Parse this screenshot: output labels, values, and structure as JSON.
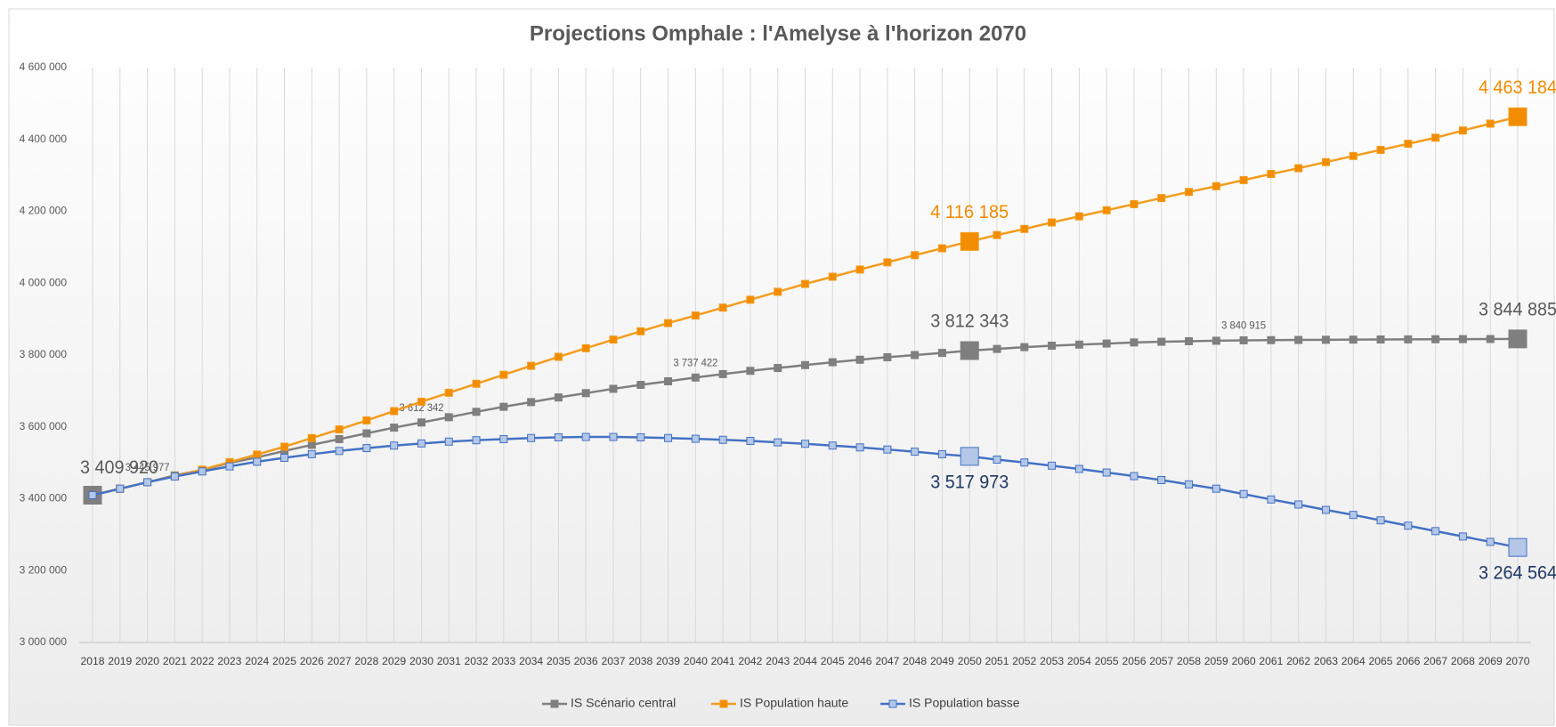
{
  "chart_data": {
    "type": "line",
    "title": "Projections Omphale : l'Amelyse à l'horizon 2070",
    "categories": [
      "2018",
      "2019",
      "2020",
      "2021",
      "2022",
      "2023",
      "2024",
      "2025",
      "2026",
      "2027",
      "2028",
      "2029",
      "2030",
      "2031",
      "2032",
      "2033",
      "2034",
      "2035",
      "2036",
      "2037",
      "2038",
      "2039",
      "2040",
      "2041",
      "2042",
      "2043",
      "2044",
      "2045",
      "2046",
      "2047",
      "2048",
      "2049",
      "2050",
      "2051",
      "2052",
      "2053",
      "2054",
      "2055",
      "2056",
      "2057",
      "2058",
      "2059",
      "2060",
      "2061",
      "2062",
      "2063",
      "2064",
      "2065",
      "2066",
      "2067",
      "2068",
      "2069",
      "2070"
    ],
    "ylim": [
      3000000,
      4600000
    ],
    "yticks": [
      {
        "value": 3000000,
        "label": "3 000 000"
      },
      {
        "value": 3200000,
        "label": "3 200 000"
      },
      {
        "value": 3400000,
        "label": "3 400 000"
      },
      {
        "value": 3600000,
        "label": "3 600 000"
      },
      {
        "value": 3800000,
        "label": "3 800 000"
      },
      {
        "value": 4000000,
        "label": "4 000 000"
      },
      {
        "value": 4200000,
        "label": "4 200 000"
      },
      {
        "value": 4400000,
        "label": "4 400 000"
      },
      {
        "value": 4600000,
        "label": "4 600 000"
      }
    ],
    "grid": true,
    "legend": "bottom",
    "series": [
      {
        "name": "IS Scénario central",
        "color": "#7f7f7f",
        "marker_color": "#7f7f7f",
        "label_color": "#595959",
        "values": [
          3409920,
          3428000,
          3445977,
          3465000,
          3480000,
          3500000,
          3515000,
          3533000,
          3550000,
          3566000,
          3582000,
          3598000,
          3612342,
          3627000,
          3642000,
          3656000,
          3669000,
          3682000,
          3694000,
          3706000,
          3717000,
          3727000,
          3737422,
          3747000,
          3756000,
          3764000,
          3772000,
          3780000,
          3787000,
          3794000,
          3800000,
          3806000,
          3812343,
          3817000,
          3822000,
          3826000,
          3829000,
          3832000,
          3835000,
          3837000,
          3838500,
          3839800,
          3840915,
          3841500,
          3842000,
          3842500,
          3843000,
          3843300,
          3843600,
          3844000,
          3844300,
          3844600,
          3844885
        ],
        "value_labels": [
          "3 409 920",
          null,
          "3 445 977",
          null,
          null,
          null,
          null,
          null,
          null,
          null,
          null,
          null,
          "3 612 342",
          null,
          null,
          null,
          null,
          null,
          null,
          null,
          null,
          null,
          "3 737 422",
          null,
          null,
          null,
          null,
          null,
          null,
          null,
          null,
          null,
          "3 812 343",
          null,
          null,
          null,
          null,
          null,
          null,
          null,
          null,
          null,
          "3 840 915",
          null,
          null,
          null,
          null,
          null,
          null,
          null,
          null,
          null,
          "3 844 885"
        ]
      },
      {
        "name": "IS Population haute",
        "color": "#f39c1e",
        "marker_color": "#f28c00",
        "label_color": "#f28c00",
        "values": [
          3409920,
          3428000,
          3445977,
          3463000,
          3481000,
          3502000,
          3523000,
          3545000,
          3569000,
          3593000,
          3618000,
          3644000,
          3670000,
          3695000,
          3720000,
          3745000,
          3770000,
          3795000,
          3819000,
          3843000,
          3866000,
          3889000,
          3910000,
          3932000,
          3954000,
          3976000,
          3998000,
          4018000,
          4038000,
          4058000,
          4078000,
          4097000,
          4116185,
          4134000,
          4151000,
          4169000,
          4186000,
          4203000,
          4220000,
          4237000,
          4254000,
          4270000,
          4287000,
          4304000,
          4320000,
          4337000,
          4354000,
          4371000,
          4388000,
          4405000,
          4425000,
          4444000,
          4463184
        ],
        "value_labels": [
          null,
          null,
          null,
          null,
          null,
          null,
          null,
          null,
          null,
          null,
          null,
          null,
          null,
          null,
          null,
          null,
          null,
          null,
          null,
          null,
          null,
          null,
          null,
          null,
          null,
          null,
          null,
          null,
          null,
          null,
          null,
          null,
          "4 116 185",
          null,
          null,
          null,
          null,
          null,
          null,
          null,
          null,
          null,
          null,
          null,
          null,
          null,
          null,
          null,
          null,
          null,
          null,
          null,
          "4 463 184"
        ]
      },
      {
        "name": "IS Population basse",
        "color": "#4472c4",
        "marker_color": "#b4c7e7",
        "label_color": "#1f3864",
        "values": [
          3409920,
          3428000,
          3445977,
          3462000,
          3476000,
          3490000,
          3503000,
          3514000,
          3524000,
          3533000,
          3541000,
          3548000,
          3554000,
          3559000,
          3563000,
          3566000,
          3569000,
          3571000,
          3572000,
          3572000,
          3571000,
          3569000,
          3567000,
          3564000,
          3561000,
          3557000,
          3553000,
          3548000,
          3543000,
          3537000,
          3531000,
          3524000,
          3517973,
          3509000,
          3501000,
          3492000,
          3483000,
          3473000,
          3463000,
          3452000,
          3440000,
          3428000,
          3413000,
          3398000,
          3384000,
          3369000,
          3355000,
          3340000,
          3325000,
          3310000,
          3295000,
          3280000,
          3264564
        ],
        "value_labels": [
          null,
          null,
          null,
          null,
          null,
          null,
          null,
          null,
          null,
          null,
          null,
          null,
          null,
          null,
          null,
          null,
          null,
          null,
          null,
          null,
          null,
          null,
          null,
          null,
          null,
          null,
          null,
          null,
          null,
          null,
          null,
          null,
          "3 517 973",
          null,
          null,
          null,
          null,
          null,
          null,
          null,
          null,
          null,
          null,
          null,
          null,
          null,
          null,
          null,
          null,
          null,
          null,
          null,
          "3 264 564"
        ]
      }
    ]
  }
}
